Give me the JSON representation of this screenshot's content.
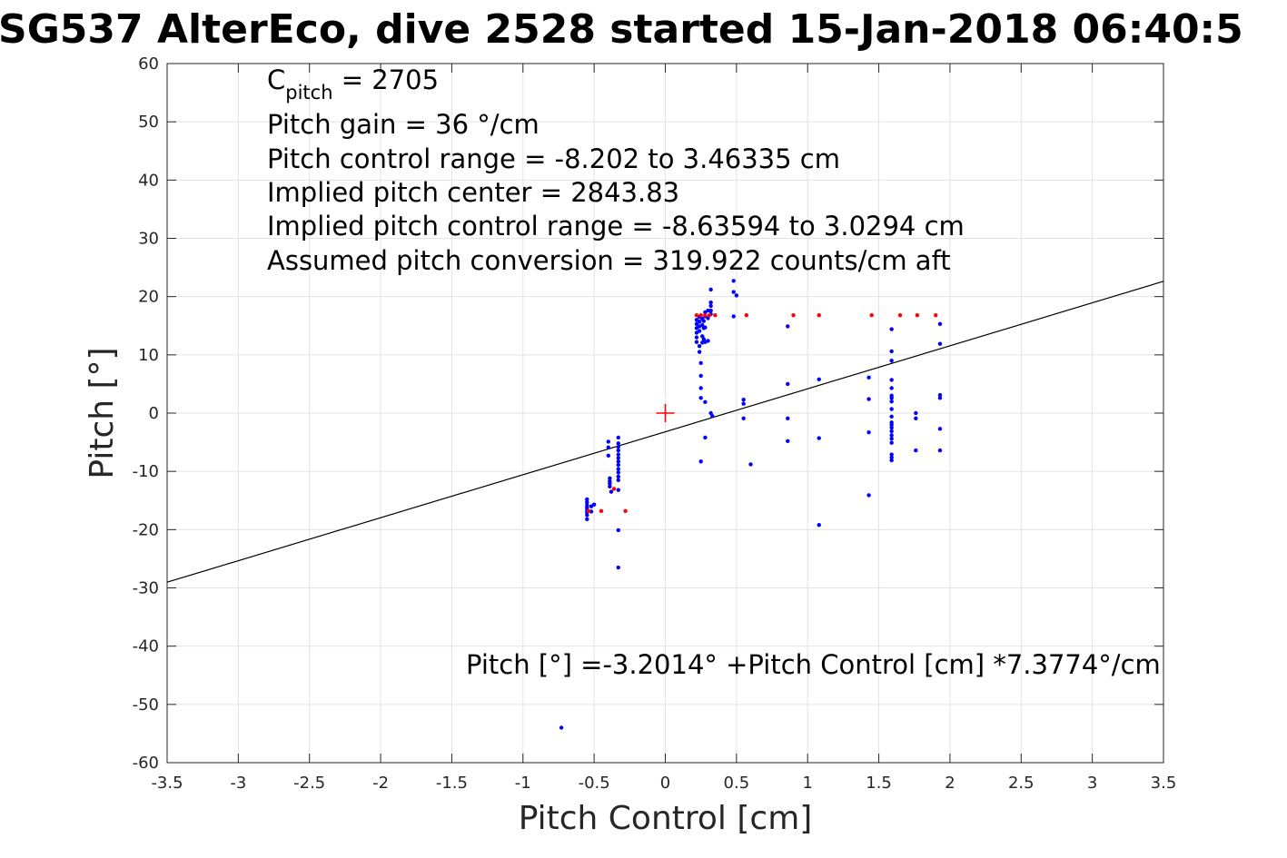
{
  "chart_data": {
    "type": "scatter",
    "title": "SG537 AlterEco, dive 2528 started 15-Jan-2018 06:40:5",
    "xlabel": "Pitch Control [cm]",
    "ylabel": "Pitch [°]",
    "xlim": [
      -3.5,
      3.5
    ],
    "ylim": [
      -60,
      60
    ],
    "grid": true,
    "x_ticks": [
      -3.5,
      -3,
      -2.5,
      -2,
      -1.5,
      -1,
      -0.5,
      0,
      0.5,
      1,
      1.5,
      2,
      2.5,
      3,
      3.5
    ],
    "x_tick_labels": [
      "-3.5",
      "-3",
      "-2.5",
      "-2",
      "-1.5",
      "-1",
      "-0.5",
      "0",
      "0.5",
      "1",
      "1.5",
      "2",
      "2.5",
      "3",
      "3.5"
    ],
    "y_ticks": [
      60,
      50,
      40,
      30,
      20,
      10,
      0,
      -10,
      -20,
      -30,
      -40,
      -50,
      -60
    ],
    "y_tick_labels": [
      "60",
      "50",
      "40",
      "30",
      "20",
      "10",
      "0",
      "-10",
      "-20",
      "-30",
      "-40",
      "-50",
      "-60"
    ],
    "annotations": {
      "c_pitch_symbol": "C",
      "c_pitch_subscript": "pitch",
      "c_pitch_value": " = 2705",
      "lines": [
        "Pitch gain = 36 °/cm",
        "Pitch control range = -8.202 to 3.46335 cm",
        "Implied pitch center = 2843.83",
        "Implied pitch control range = -8.63594 to 3.0294 cm",
        "Assumed pitch conversion = 319.922 counts/cm aft"
      ],
      "fit_equation": "Pitch [°] =-3.2014° +Pitch Control [cm] *7.3774°/cm"
    },
    "fit_line": {
      "intercept": -3.2014,
      "slope": 7.3774,
      "color": "#000000"
    },
    "center_marker": {
      "x": 0,
      "y": 0,
      "color": "#ff0000"
    },
    "series": [
      {
        "color": "#0000ff",
        "points": [
          [
            -0.55,
            -14.8
          ],
          [
            -0.55,
            -15.3
          ],
          [
            -0.55,
            -15.8
          ],
          [
            -0.55,
            -16.2
          ],
          [
            -0.55,
            -16.6
          ],
          [
            -0.55,
            -17.0
          ],
          [
            -0.55,
            -17.5
          ],
          [
            -0.55,
            -18.2
          ],
          [
            -0.52,
            -16.0
          ],
          [
            -0.52,
            -16.9
          ],
          [
            -0.5,
            -15.7
          ],
          [
            -0.4,
            -4.9
          ],
          [
            -0.4,
            -5.9
          ],
          [
            -0.4,
            -7.3
          ],
          [
            -0.39,
            -11.2
          ],
          [
            -0.39,
            -11.7
          ],
          [
            -0.39,
            -12.1
          ],
          [
            -0.39,
            -12.6
          ],
          [
            -0.38,
            -13.5
          ],
          [
            -0.33,
            -4.2
          ],
          [
            -0.33,
            -5.2
          ],
          [
            -0.33,
            -5.8
          ],
          [
            -0.33,
            -6.4
          ],
          [
            -0.33,
            -7.1
          ],
          [
            -0.33,
            -7.7
          ],
          [
            -0.33,
            -8.3
          ],
          [
            -0.33,
            -8.9
          ],
          [
            -0.33,
            -9.6
          ],
          [
            -0.33,
            -10.2
          ],
          [
            -0.33,
            -10.9
          ],
          [
            -0.33,
            -11.5
          ],
          [
            -0.33,
            -13.2
          ],
          [
            -0.33,
            -20.1
          ],
          [
            -0.33,
            -26.5
          ],
          [
            -0.73,
            -54.0
          ],
          [
            0.22,
            16.0
          ],
          [
            0.22,
            15.3
          ],
          [
            0.22,
            14.6
          ],
          [
            0.22,
            13.8
          ],
          [
            0.22,
            13.0
          ],
          [
            0.22,
            12.2
          ],
          [
            0.24,
            16.5
          ],
          [
            0.24,
            15.7
          ],
          [
            0.24,
            14.9
          ],
          [
            0.24,
            14.1
          ],
          [
            0.24,
            11.5
          ],
          [
            0.24,
            10.5
          ],
          [
            0.25,
            8.6
          ],
          [
            0.25,
            6.4
          ],
          [
            0.25,
            4.3
          ],
          [
            0.25,
            2.6
          ],
          [
            0.25,
            -8.3
          ],
          [
            0.26,
            16.2
          ],
          [
            0.26,
            15.1
          ],
          [
            0.26,
            13.2
          ],
          [
            0.26,
            12.1
          ],
          [
            0.27,
            15.8
          ],
          [
            0.27,
            14.6
          ],
          [
            0.27,
            12.7
          ],
          [
            0.28,
            17.3
          ],
          [
            0.28,
            16.6
          ],
          [
            0.28,
            14.7
          ],
          [
            0.28,
            12.2
          ],
          [
            0.28,
            1.9
          ],
          [
            0.28,
            -4.2
          ],
          [
            0.3,
            17.6
          ],
          [
            0.3,
            16.3
          ],
          [
            0.3,
            12.4
          ],
          [
            0.32,
            21.2
          ],
          [
            0.32,
            19.0
          ],
          [
            0.32,
            18.4
          ],
          [
            0.32,
            17.6
          ],
          [
            0.32,
            17.0
          ],
          [
            0.32,
            0.0
          ],
          [
            0.33,
            -0.5
          ],
          [
            0.48,
            22.7
          ],
          [
            0.48,
            20.8
          ],
          [
            0.48,
            16.6
          ],
          [
            0.5,
            20.2
          ],
          [
            0.55,
            2.3
          ],
          [
            0.55,
            1.6
          ],
          [
            0.55,
            -0.9
          ],
          [
            0.6,
            -8.8
          ],
          [
            0.86,
            14.9
          ],
          [
            0.86,
            5.0
          ],
          [
            0.86,
            -0.9
          ],
          [
            0.86,
            -4.8
          ],
          [
            1.08,
            5.8
          ],
          [
            1.08,
            -4.3
          ],
          [
            1.08,
            -19.2
          ],
          [
            1.43,
            6.1
          ],
          [
            1.43,
            2.4
          ],
          [
            1.43,
            -3.3
          ],
          [
            1.43,
            -14.1
          ],
          [
            1.59,
            14.4
          ],
          [
            1.59,
            10.6
          ],
          [
            1.59,
            9.0
          ],
          [
            1.59,
            5.7
          ],
          [
            1.59,
            4.3
          ],
          [
            1.59,
            3.0
          ],
          [
            1.59,
            2.6
          ],
          [
            1.59,
            2.0
          ],
          [
            1.59,
            0.7
          ],
          [
            1.59,
            -0.6
          ],
          [
            1.59,
            -1.6
          ],
          [
            1.59,
            -2.0
          ],
          [
            1.59,
            -2.5
          ],
          [
            1.59,
            -3.1
          ],
          [
            1.59,
            -3.8
          ],
          [
            1.59,
            -4.4
          ],
          [
            1.59,
            -5.1
          ],
          [
            1.59,
            -7.1
          ],
          [
            1.59,
            -8.1
          ],
          [
            1.59,
            -7.6
          ],
          [
            1.76,
            0.0
          ],
          [
            1.76,
            -0.9
          ],
          [
            1.76,
            -6.4
          ],
          [
            1.93,
            15.3
          ],
          [
            1.93,
            11.9
          ],
          [
            1.93,
            3.1
          ],
          [
            1.93,
            2.6
          ],
          [
            1.93,
            -2.7
          ],
          [
            1.93,
            -6.4
          ]
        ]
      },
      {
        "color": "#ff0000",
        "points": [
          [
            -0.54,
            -16.8
          ],
          [
            -0.45,
            -16.8
          ],
          [
            -0.36,
            -13.0
          ],
          [
            -0.28,
            -16.8
          ],
          [
            0.22,
            16.8
          ],
          [
            0.25,
            16.8
          ],
          [
            0.28,
            16.8
          ],
          [
            0.31,
            16.8
          ],
          [
            0.35,
            16.8
          ],
          [
            0.57,
            16.8
          ],
          [
            0.9,
            16.8
          ],
          [
            1.08,
            16.8
          ],
          [
            1.45,
            16.8
          ],
          [
            1.65,
            16.8
          ],
          [
            1.77,
            16.8
          ],
          [
            1.9,
            16.8
          ]
        ]
      }
    ]
  }
}
